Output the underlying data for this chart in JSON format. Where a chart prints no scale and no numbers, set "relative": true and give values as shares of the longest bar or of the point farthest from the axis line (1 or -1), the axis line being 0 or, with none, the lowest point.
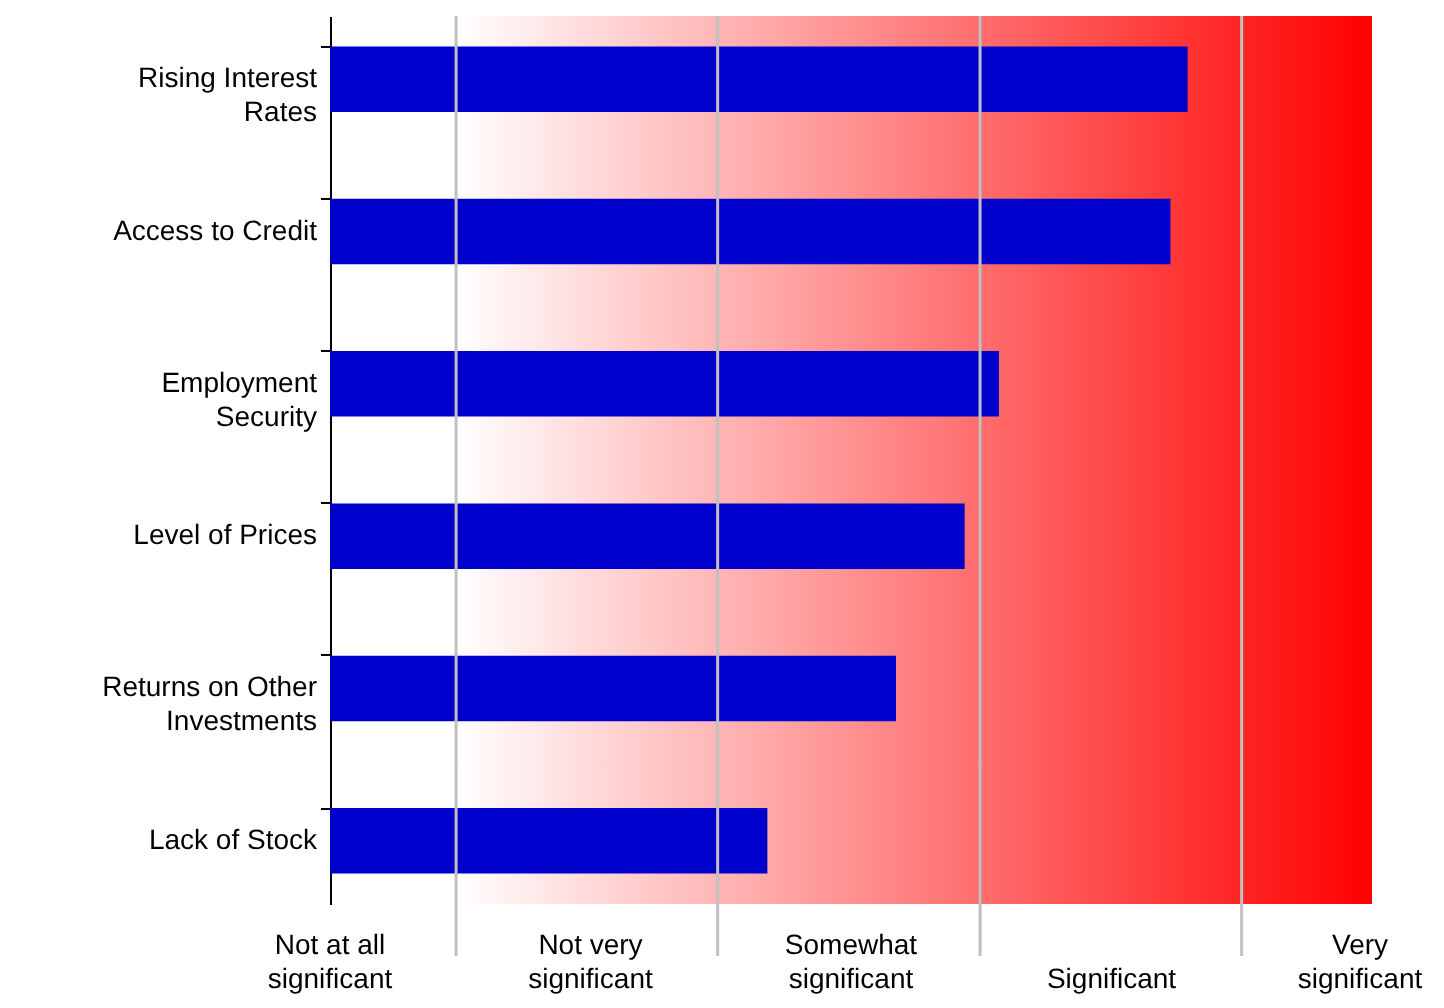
{
  "chart_data": {
    "type": "bar",
    "orientation": "horizontal",
    "relative": true,
    "categories": [
      "Rising Interest Rates",
      "Access to Credit",
      "Employment Security",
      "Level of Prices",
      "Returns on Other Investments",
      "Lack of Stock"
    ],
    "values": [
      1,
      0.98,
      0.78,
      0.74,
      0.66,
      0.51
    ],
    "color": "#0000cc",
    "annotations": [
      "Not at all significant",
      "Not very significant",
      "Somewhat significant",
      "Significant",
      "Very significant"
    ],
    "ref_lines": [
      {
        "axis": "x",
        "value": 0.147,
        "color": "#c0c0c0"
      },
      {
        "axis": "x",
        "value": 0.452,
        "color": "#c0c0c0"
      },
      {
        "axis": "x",
        "value": 0.758,
        "color": "#c0c0c0"
      },
      {
        "axis": "x",
        "value": 1.063,
        "color": "#c0c0c0"
      }
    ]
  }
}
